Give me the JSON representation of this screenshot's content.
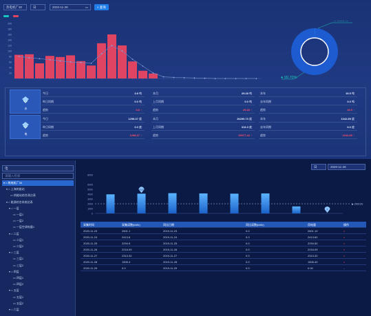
{
  "toolbar": {
    "select_value": "热电机厂30",
    "unit_value": "日",
    "date_value": "2020-11-28",
    "search_label": "查询"
  },
  "chart1": {
    "legend": [
      {
        "name": "",
        "color": "#17c6c0"
      },
      {
        "name": "",
        "color": "#e0455f"
      }
    ],
    "color_bar": "#df4463",
    "color_line": "#6d86c8"
  },
  "chart_data": [
    {
      "type": "bar",
      "categories": [
        "",
        "",
        "",
        "",
        "",
        "",
        "",
        "",
        "",
        "",
        "",
        "",
        "",
        "",
        "",
        "",
        "",
        "",
        "",
        "",
        "",
        "",
        "",
        ""
      ],
      "values": [
        86,
        88,
        55,
        82,
        78,
        84,
        63,
        47,
        128,
        160,
        120,
        62,
        28,
        18,
        0,
        0,
        0,
        0,
        0,
        0,
        0,
        0,
        0,
        0
      ],
      "line_values": [
        80,
        75,
        72,
        68,
        64,
        60,
        58,
        55,
        90,
        120,
        100,
        70,
        45,
        20,
        6,
        4,
        3,
        2,
        1,
        0,
        0,
        0,
        0,
        0
      ],
      "y_ticks": [
        "200",
        "180",
        "160",
        "140",
        "120",
        "100",
        "80",
        "60",
        "40",
        "20"
      ],
      "ylim": [
        0,
        200
      ]
    },
    {
      "type": "pie",
      "labels": [
        "0.30%",
        "99.70%"
      ],
      "values": [
        0.3,
        99.7
      ],
      "colors": [
        "#2d7fe4",
        "#1c5bd0"
      ]
    },
    {
      "type": "bar",
      "categories": [
        "",
        "",
        "",
        "",
        "",
        "",
        "",
        ""
      ],
      "values": [
        3960,
        4100,
        4200,
        4150,
        4100,
        4150,
        1450,
        0
      ],
      "reference_line": "2000",
      "y_ticks": [
        "8000",
        "6000",
        "5000",
        "4000",
        "3000",
        "2000",
        "1000",
        "0"
      ],
      "marker_top": "4100",
      "marker_end": "0"
    }
  ],
  "cards": [
    {
      "label": "水",
      "rows": [
        {
          "k": "今日",
          "v": "3.8",
          "u": "吨"
        },
        {
          "k": "昨日同期",
          "v": "0.0",
          "u": "吨"
        },
        {
          "k": "趋势",
          "v": "3.8",
          "u": "↑",
          "red": true
        }
      ],
      "mid": [
        {
          "k": "本月",
          "v": "29.28",
          "u": "吨"
        },
        {
          "k": "上月同期",
          "v": "0.0",
          "u": "吨"
        },
        {
          "k": "趋势",
          "v": "29.28",
          "u": "↑",
          "red": true
        }
      ],
      "right": [
        {
          "k": "本年",
          "v": "19.5",
          "u": "吨"
        },
        {
          "k": "去年同期",
          "v": "0.0",
          "u": "吨"
        },
        {
          "k": "趋势",
          "v": "19.5",
          "u": "↑",
          "red": true
        }
      ]
    },
    {
      "label": "电",
      "rows": [
        {
          "k": "今日",
          "v": "1298.37",
          "u": "度"
        },
        {
          "k": "昨日同期",
          "v": "0.0",
          "u": "度"
        },
        {
          "k": "趋势",
          "v": "1298.37",
          "u": "↑",
          "red": true
        }
      ],
      "mid": [
        {
          "k": "本月",
          "v": "26290.73",
          "u": "度"
        },
        {
          "k": "上月同期",
          "v": "313.3",
          "u": "度"
        },
        {
          "k": "趋势",
          "v": "25977.43",
          "u": "↑",
          "red": true
        }
      ],
      "right": [
        {
          "k": "本年",
          "v": "1042.85",
          "u": "度"
        },
        {
          "k": "去年同期",
          "v": "0.0",
          "u": "度"
        },
        {
          "k": "趋势",
          "v": "1042.85",
          "u": "↑",
          "red": true
        }
      ]
    }
  ],
  "sidebar": {
    "search_value": "电",
    "filter_placeholder": "请输入检索",
    "items": [
      {
        "label": "▾ ⌂ 热电机厂30",
        "indent": 2,
        "sel": true
      },
      {
        "label": "▾ ⌂ 上海热能站",
        "indent": 6
      },
      {
        "label": "▭ 热能站综合测点表",
        "indent": 12
      },
      {
        "label": "▾ ⌂ 能源综合系统总表",
        "indent": 6
      },
      {
        "label": "▾ ⌂ 一层",
        "indent": 10
      },
      {
        "label": "▭ 一层1",
        "indent": 16
      },
      {
        "label": "▭ 一层2",
        "indent": 16
      },
      {
        "label": "▭ 一层空调电量1",
        "indent": 16
      },
      {
        "label": "▾ ⌂ 二层",
        "indent": 10
      },
      {
        "label": "▭ 二层1",
        "indent": 16
      },
      {
        "label": "▭ 二层2",
        "indent": 16
      },
      {
        "label": "▾ ⌂ 三层",
        "indent": 10
      },
      {
        "label": "▭ 三层1",
        "indent": 16
      },
      {
        "label": "▭ 三层2",
        "indent": 16
      },
      {
        "label": "▾ ⌂ 四层",
        "indent": 10
      },
      {
        "label": "▭ 四层1",
        "indent": 16
      },
      {
        "label": "▭ 四层2",
        "indent": 16
      },
      {
        "label": "▾ ⌂ 五层",
        "indent": 10
      },
      {
        "label": "▭ 五层1",
        "indent": 16
      },
      {
        "label": "▭ 五层2",
        "indent": 16
      },
      {
        "label": "▾ ⌂ 六层",
        "indent": 10
      }
    ]
  },
  "right_controls": {
    "unit": "日",
    "date": "2020-11-28"
  },
  "ref_label": "2000.00",
  "table": {
    "headers": [
      "采集时间",
      "采集读数(kWh)",
      "同比日期",
      "同比读数(kWh)",
      "用电量",
      "操作"
    ],
    "rows": [
      [
        "2020-11-23",
        "2601.1",
        "2019-11-23",
        "0.0",
        "2601.10",
        "×"
      ],
      [
        "2020-11-24",
        "2413.6",
        "2019-11-24",
        "0.0",
        "2413.60",
        "×"
      ],
      [
        "2020-11-25",
        "2294.5",
        "2019-11-25",
        "0.0",
        "2294.50",
        "×"
      ],
      [
        "2020-11-26",
        "2216.09",
        "2019-11-26",
        "0.0",
        "2216.09",
        "×"
      ],
      [
        "2020-11-27",
        "2313.32",
        "2019-11-27",
        "0.0",
        "2313.32",
        "×"
      ],
      [
        "2020-11-28",
        "1505.4",
        "2019-11-28",
        "0.0",
        "1505.40",
        "×"
      ],
      [
        "2020-11-29",
        "0.0",
        "2019-11-29",
        "0.0",
        "0.00",
        "-"
      ]
    ]
  }
}
